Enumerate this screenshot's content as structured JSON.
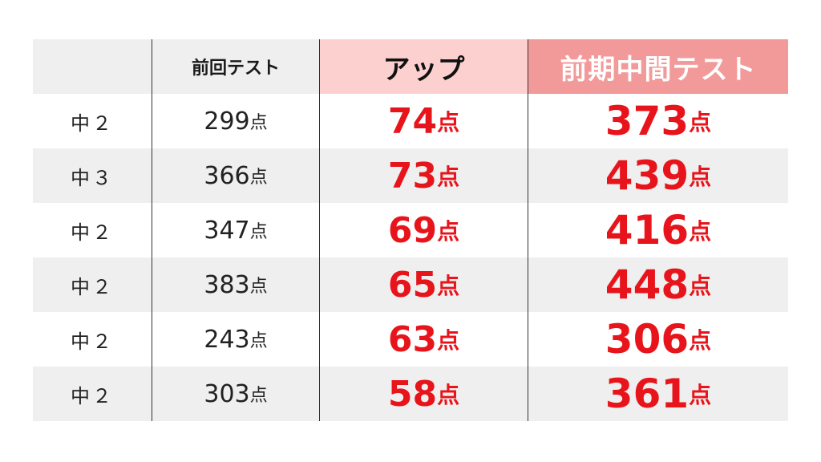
{
  "header": {
    "col1": "",
    "col2": "前回テスト",
    "col3": "アップ",
    "col4": "前期中間テスト"
  },
  "unit": "点",
  "rows": [
    {
      "grade": "中２",
      "previous": "299",
      "up": "74",
      "total": "373"
    },
    {
      "grade": "中３",
      "previous": "366",
      "up": "73",
      "total": "439"
    },
    {
      "grade": "中２",
      "previous": "347",
      "up": "69",
      "total": "416"
    },
    {
      "grade": "中２",
      "previous": "383",
      "up": "65",
      "total": "448"
    },
    {
      "grade": "中２",
      "previous": "243",
      "up": "63",
      "total": "306"
    },
    {
      "grade": "中２",
      "previous": "303",
      "up": "58",
      "total": "361"
    }
  ],
  "colors": {
    "accent_red": "#e8141b",
    "header_up_bg": "#fdd0d0",
    "header_total_bg": "#f29a9a",
    "row_shade": "#efefef"
  }
}
